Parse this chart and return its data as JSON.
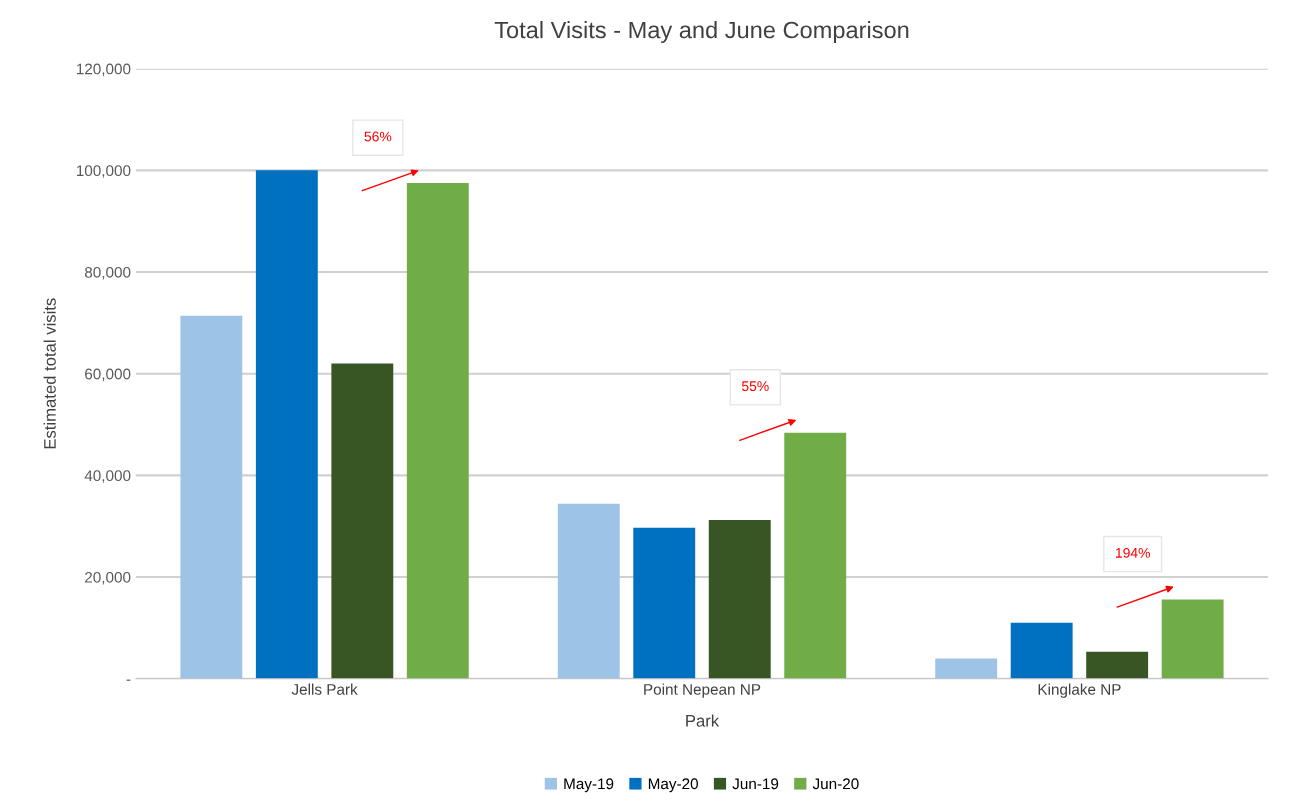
{
  "chart_data": {
    "type": "bar",
    "title": "Total Visits - May and June Comparison",
    "xlabel": "Park",
    "ylabel": "Estimated total visits",
    "categories": [
      "Jells Park",
      "Point Nepean NP",
      "Kinglake NP"
    ],
    "series": [
      {
        "name": "May-19",
        "color": "#9dc3e6",
        "values": [
          71400,
          34400,
          4000
        ]
      },
      {
        "name": "May-20",
        "color": "#0070c0",
        "values": [
          100000,
          29700,
          11000
        ]
      },
      {
        "name": "Jun-19",
        "color": "#375623",
        "values": [
          62000,
          31200,
          5300
        ]
      },
      {
        "name": "Jun-20",
        "color": "#70ad47",
        "values": [
          97500,
          48400,
          15600
        ]
      }
    ],
    "ylim": [
      0,
      120000
    ],
    "yticks": [
      {
        "value": 0,
        "label": "-"
      },
      {
        "value": 20000,
        "label": "20,000"
      },
      {
        "value": 40000,
        "label": "40,000"
      },
      {
        "value": 60000,
        "label": "60,000"
      },
      {
        "value": 80000,
        "label": "80,000"
      },
      {
        "value": 100000,
        "label": "100,000"
      },
      {
        "value": 120000,
        "label": "120,000"
      }
    ],
    "grid": "y",
    "legend": "bottom",
    "annotations": [
      "56%",
      "55%",
      "194%"
    ]
  }
}
